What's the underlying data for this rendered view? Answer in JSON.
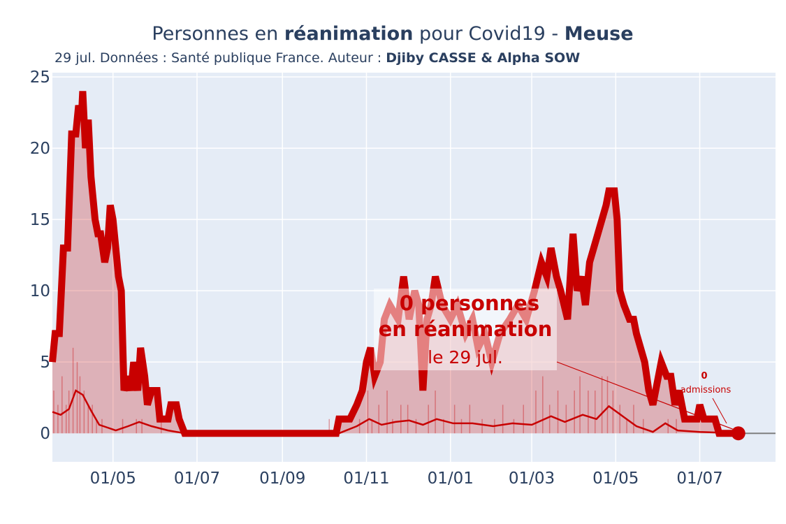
{
  "title": {
    "prefix": "Personnes en ",
    "bold1": "réanimation",
    "middle": " pour Covid19 - ",
    "bold2": "Meuse"
  },
  "subtitle": {
    "text": "29 jul. Données : Santé publique France. Auteur : ",
    "author": "Djiby CASSE & Alpha SOW"
  },
  "annotation": {
    "line1": "0 personnes",
    "line2": "en réanimation",
    "line3": "le 29 jul."
  },
  "admissions_annotation": {
    "value": "0",
    "label": "admissions"
  },
  "colors": {
    "main_line": "#c80000",
    "fill": "rgba(200,0,0,0.25)",
    "bars": "rgba(200,0,0,0.35)",
    "plot_bg": "#e5ecf6",
    "grid": "#ffffff",
    "zero_line": "#7f7f7f"
  },
  "chart_data": {
    "type": "line",
    "x_unit": "date",
    "ylim": [
      -2,
      25.3
    ],
    "xlim": [
      "2020-03-18",
      "2021-08-25"
    ],
    "yticks": [
      0,
      5,
      10,
      15,
      20,
      25
    ],
    "xticks": [
      {
        "date": "2020-05-01",
        "label": "01/05"
      },
      {
        "date": "2020-07-01",
        "label": "01/07"
      },
      {
        "date": "2020-09-01",
        "label": "01/09"
      },
      {
        "date": "2020-11-01",
        "label": "01/11"
      },
      {
        "date": "2021-01-01",
        "label": "01/01"
      },
      {
        "date": "2021-03-01",
        "label": "01/03"
      },
      {
        "date": "2021-05-01",
        "label": "01/05"
      },
      {
        "date": "2021-07-01",
        "label": "01/07"
      }
    ],
    "grid": true,
    "series": [
      {
        "role": "reanimation",
        "points": [
          [
            "2020-03-18",
            5
          ],
          [
            "2020-03-20",
            7
          ],
          [
            "2020-03-23",
            7
          ],
          [
            "2020-03-26",
            13
          ],
          [
            "2020-03-29",
            13
          ],
          [
            "2020-04-01",
            21
          ],
          [
            "2020-04-04",
            21
          ],
          [
            "2020-04-06",
            23
          ],
          [
            "2020-04-08",
            22
          ],
          [
            "2020-04-09",
            24
          ],
          [
            "2020-04-11",
            20
          ],
          [
            "2020-04-13",
            22
          ],
          [
            "2020-04-15",
            18
          ],
          [
            "2020-04-18",
            15
          ],
          [
            "2020-04-20",
            14
          ],
          [
            "2020-04-22",
            14
          ],
          [
            "2020-04-25",
            12
          ],
          [
            "2020-04-27",
            13
          ],
          [
            "2020-04-29",
            16
          ],
          [
            "2020-05-01",
            15
          ],
          [
            "2020-05-03",
            13
          ],
          [
            "2020-05-05",
            11
          ],
          [
            "2020-05-07",
            10
          ],
          [
            "2020-05-09",
            3
          ],
          [
            "2020-05-12",
            4
          ],
          [
            "2020-05-14",
            3
          ],
          [
            "2020-05-16",
            5
          ],
          [
            "2020-05-19",
            3
          ],
          [
            "2020-05-21",
            6
          ],
          [
            "2020-05-24",
            4
          ],
          [
            "2020-05-26",
            2
          ],
          [
            "2020-05-29",
            3
          ],
          [
            "2020-06-02",
            3
          ],
          [
            "2020-06-04",
            1
          ],
          [
            "2020-06-10",
            1
          ],
          [
            "2020-06-12",
            2
          ],
          [
            "2020-06-16",
            2
          ],
          [
            "2020-06-18",
            1
          ],
          [
            "2020-06-22",
            0
          ],
          [
            "2020-10-10",
            0
          ],
          [
            "2020-10-12",
            1
          ],
          [
            "2020-10-20",
            1
          ],
          [
            "2020-10-25",
            2
          ],
          [
            "2020-10-29",
            3
          ],
          [
            "2020-11-01",
            5
          ],
          [
            "2020-11-04",
            6
          ],
          [
            "2020-11-07",
            4
          ],
          [
            "2020-11-11",
            5
          ],
          [
            "2020-11-14",
            8
          ],
          [
            "2020-11-18",
            9
          ],
          [
            "2020-11-24",
            8
          ],
          [
            "2020-11-28",
            11
          ],
          [
            "2020-12-02",
            8
          ],
          [
            "2020-12-06",
            10
          ],
          [
            "2020-12-09",
            9
          ],
          [
            "2020-12-12",
            3
          ],
          [
            "2020-12-15",
            8
          ],
          [
            "2020-12-18",
            9
          ],
          [
            "2020-12-21",
            11
          ],
          [
            "2020-12-26",
            9
          ],
          [
            "2021-01-01",
            8
          ],
          [
            "2021-01-06",
            9
          ],
          [
            "2021-01-12",
            7
          ],
          [
            "2021-01-17",
            8
          ],
          [
            "2021-01-21",
            6
          ],
          [
            "2021-01-26",
            7
          ],
          [
            "2021-01-31",
            5
          ],
          [
            "2021-02-06",
            7
          ],
          [
            "2021-02-13",
            8
          ],
          [
            "2021-02-19",
            9
          ],
          [
            "2021-02-25",
            8
          ],
          [
            "2021-03-03",
            10
          ],
          [
            "2021-03-08",
            12
          ],
          [
            "2021-03-12",
            11
          ],
          [
            "2021-03-15",
            13
          ],
          [
            "2021-03-19",
            11
          ],
          [
            "2021-03-22",
            10
          ],
          [
            "2021-03-27",
            8
          ],
          [
            "2021-03-31",
            14
          ],
          [
            "2021-04-03",
            10
          ],
          [
            "2021-04-06",
            11
          ],
          [
            "2021-04-09",
            9
          ],
          [
            "2021-04-12",
            12
          ],
          [
            "2021-04-15",
            13
          ],
          [
            "2021-04-18",
            14
          ],
          [
            "2021-04-21",
            15
          ],
          [
            "2021-04-24",
            16
          ],
          [
            "2021-04-26",
            17
          ],
          [
            "2021-04-30",
            17
          ],
          [
            "2021-05-02",
            15
          ],
          [
            "2021-05-04",
            10
          ],
          [
            "2021-05-07",
            9
          ],
          [
            "2021-05-11",
            8
          ],
          [
            "2021-05-14",
            8
          ],
          [
            "2021-05-16",
            7
          ],
          [
            "2021-05-19",
            6
          ],
          [
            "2021-05-22",
            5
          ],
          [
            "2021-05-25",
            3
          ],
          [
            "2021-05-28",
            2
          ],
          [
            "2021-06-03",
            5
          ],
          [
            "2021-06-07",
            4
          ],
          [
            "2021-06-10",
            4
          ],
          [
            "2021-06-13",
            2
          ],
          [
            "2021-06-16",
            3
          ],
          [
            "2021-06-20",
            1
          ],
          [
            "2021-06-29",
            1
          ],
          [
            "2021-07-01",
            2
          ],
          [
            "2021-07-04",
            1
          ],
          [
            "2021-07-12",
            1
          ],
          [
            "2021-07-15",
            0
          ],
          [
            "2021-07-29",
            0
          ]
        ]
      },
      {
        "role": "admissions_smoothed",
        "points": [
          [
            "2020-03-18",
            1.5
          ],
          [
            "2020-03-24",
            1.3
          ],
          [
            "2020-03-30",
            1.7
          ],
          [
            "2020-04-04",
            3.0
          ],
          [
            "2020-04-09",
            2.7
          ],
          [
            "2020-04-15",
            1.6
          ],
          [
            "2020-04-21",
            0.6
          ],
          [
            "2020-04-27",
            0.4
          ],
          [
            "2020-05-03",
            0.2
          ],
          [
            "2020-05-12",
            0.5
          ],
          [
            "2020-05-20",
            0.8
          ],
          [
            "2020-05-29",
            0.5
          ],
          [
            "2020-06-10",
            0.2
          ],
          [
            "2020-06-22",
            0
          ],
          [
            "2020-10-12",
            0
          ],
          [
            "2020-10-25",
            0.5
          ],
          [
            "2020-11-03",
            1.0
          ],
          [
            "2020-11-12",
            0.6
          ],
          [
            "2020-11-22",
            0.8
          ],
          [
            "2020-12-02",
            0.9
          ],
          [
            "2020-12-12",
            0.6
          ],
          [
            "2020-12-22",
            1.0
          ],
          [
            "2021-01-03",
            0.7
          ],
          [
            "2021-01-17",
            0.7
          ],
          [
            "2021-02-01",
            0.5
          ],
          [
            "2021-02-15",
            0.7
          ],
          [
            "2021-03-01",
            0.6
          ],
          [
            "2021-03-15",
            1.2
          ],
          [
            "2021-03-25",
            0.8
          ],
          [
            "2021-04-07",
            1.3
          ],
          [
            "2021-04-17",
            1.0
          ],
          [
            "2021-04-26",
            1.9
          ],
          [
            "2021-05-06",
            1.2
          ],
          [
            "2021-05-16",
            0.5
          ],
          [
            "2021-05-28",
            0.1
          ],
          [
            "2021-06-06",
            0.7
          ],
          [
            "2021-06-15",
            0.2
          ],
          [
            "2021-07-01",
            0.1
          ],
          [
            "2021-07-29",
            0
          ]
        ]
      }
    ],
    "daily_admissions_bars": [
      [
        "2020-03-19",
        3
      ],
      [
        "2020-03-22",
        2
      ],
      [
        "2020-03-25",
        4
      ],
      [
        "2020-03-28",
        2
      ],
      [
        "2020-03-30",
        3
      ],
      [
        "2020-04-02",
        6
      ],
      [
        "2020-04-05",
        5
      ],
      [
        "2020-04-07",
        4
      ],
      [
        "2020-04-10",
        3
      ],
      [
        "2020-04-13",
        2
      ],
      [
        "2020-04-16",
        2
      ],
      [
        "2020-04-19",
        1
      ],
      [
        "2020-04-23",
        1
      ],
      [
        "2020-05-08",
        1
      ],
      [
        "2020-05-18",
        1
      ],
      [
        "2020-05-22",
        1
      ],
      [
        "2020-06-05",
        1
      ],
      [
        "2020-10-05",
        1
      ],
      [
        "2020-10-27",
        1
      ],
      [
        "2020-11-02",
        3
      ],
      [
        "2020-11-05",
        1
      ],
      [
        "2020-11-10",
        2
      ],
      [
        "2020-11-16",
        3
      ],
      [
        "2020-11-20",
        1
      ],
      [
        "2020-11-26",
        2
      ],
      [
        "2020-12-01",
        2
      ],
      [
        "2020-12-07",
        1
      ],
      [
        "2020-12-16",
        2
      ],
      [
        "2020-12-21",
        3
      ],
      [
        "2020-12-27",
        1
      ],
      [
        "2021-01-04",
        2
      ],
      [
        "2021-01-09",
        1
      ],
      [
        "2021-01-15",
        2
      ],
      [
        "2021-01-24",
        1
      ],
      [
        "2021-02-02",
        1
      ],
      [
        "2021-02-08",
        2
      ],
      [
        "2021-02-16",
        1
      ],
      [
        "2021-02-23",
        2
      ],
      [
        "2021-03-04",
        3
      ],
      [
        "2021-03-09",
        4
      ],
      [
        "2021-03-14",
        2
      ],
      [
        "2021-03-20",
        3
      ],
      [
        "2021-03-26",
        2
      ],
      [
        "2021-04-01",
        3
      ],
      [
        "2021-04-05",
        4
      ],
      [
        "2021-04-11",
        3
      ],
      [
        "2021-04-16",
        3
      ],
      [
        "2021-04-21",
        4
      ],
      [
        "2021-04-25",
        4
      ],
      [
        "2021-04-29",
        3
      ],
      [
        "2021-05-04",
        2
      ],
      [
        "2021-05-09",
        1
      ],
      [
        "2021-05-14",
        2
      ],
      [
        "2021-05-21",
        1
      ],
      [
        "2021-06-08",
        1
      ],
      [
        "2021-06-14",
        1
      ]
    ]
  }
}
